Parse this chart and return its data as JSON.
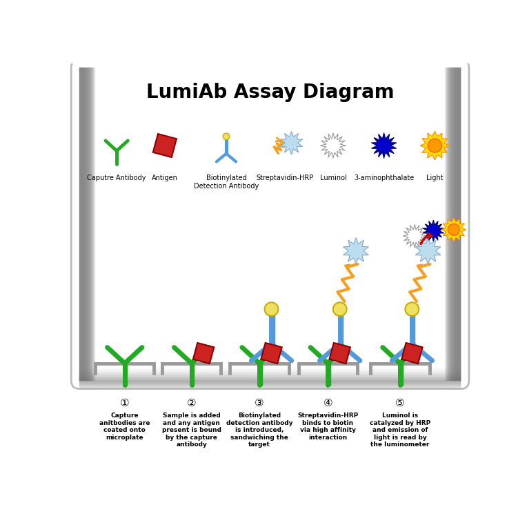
{
  "title": "LumiAb Assay Diagram",
  "title_fontsize": 20,
  "title_fontweight": "bold",
  "background_color": "#ffffff",
  "green": "#22aa22",
  "blue": "#5599dd",
  "yellow": "#f0e060",
  "red": "#cc2222",
  "orange": "#f5a020",
  "light_blue": "#aaccee",
  "navy": "#0000cc",
  "gray": "#888888",
  "legend_labels": [
    "Caputre Antibody",
    "Antigen",
    "Biotinylated\nDetection Antibody",
    "Streptavidin-HRP",
    "Luminol",
    "3-aminophthalate",
    "Light"
  ],
  "step_numbers": [
    "①",
    "②",
    "③",
    "④",
    "⑤"
  ],
  "step_texts": [
    "Capture\nanitbodies are\ncoated onto\nmicroplate",
    "Sample is added\nand any antigen\npresent is bound\nby the capture\nantibody",
    "Biotinylated\ndetection antibody\nis introduced,\nsandwiching the\ntarget",
    "Streptavidin-HRP\nbinds to biotin\nvia high affinity\ninteraction",
    "Luminol is\ncatalyzed by HRP\nand emission of\nlight is read by\nthe luminometer"
  ]
}
